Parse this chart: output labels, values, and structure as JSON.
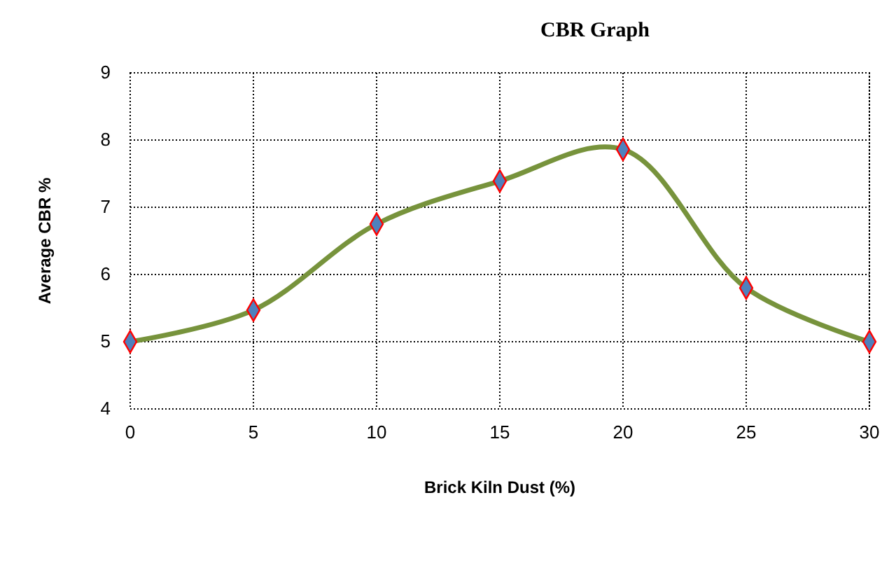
{
  "chart_data": {
    "type": "line",
    "title": "CBR Graph",
    "xlabel": "Brick Kiln Dust (%)",
    "ylabel": "Average CBR %",
    "x": [
      0,
      5,
      10,
      15,
      20,
      25,
      30
    ],
    "series": [
      {
        "color": "#77933c",
        "values": [
          5,
          5.47,
          6.75,
          7.39,
          7.86,
          5.8,
          5
        ]
      }
    ],
    "xlim": [
      0,
      30
    ],
    "xticks": [
      0,
      5,
      10,
      15,
      20,
      25,
      30
    ],
    "ylim": [
      4,
      9
    ],
    "yticks": [
      4,
      5,
      6,
      7,
      8,
      9
    ],
    "grid": true,
    "marker": "diamond",
    "line_style": "solid"
  }
}
